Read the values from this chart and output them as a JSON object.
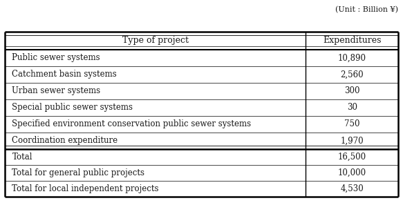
{
  "unit_label": "(Unit : Billion ¥)",
  "header": [
    "Type of project",
    "Expenditures"
  ],
  "main_rows": [
    [
      "Public sewer systems",
      "10,890"
    ],
    [
      "Catchment basin systems",
      "2,560"
    ],
    [
      "Urban sewer systems",
      "300"
    ],
    [
      "Special public sewer systems",
      "30"
    ],
    [
      "Specified environment conservation public sewer systems",
      "750"
    ],
    [
      "Coordination expenditure",
      "1,970"
    ]
  ],
  "total_rows": [
    [
      "Total",
      "16,500"
    ],
    [
      "Total for general public projects",
      "10,000"
    ],
    [
      "Total for local independent projects",
      "4,530"
    ]
  ],
  "col_split": 0.765,
  "bg_color": "#ffffff",
  "text_color": "#1a1a1a",
  "font_size": 8.5,
  "header_font_size": 9.0,
  "unit_font_size": 8.0
}
